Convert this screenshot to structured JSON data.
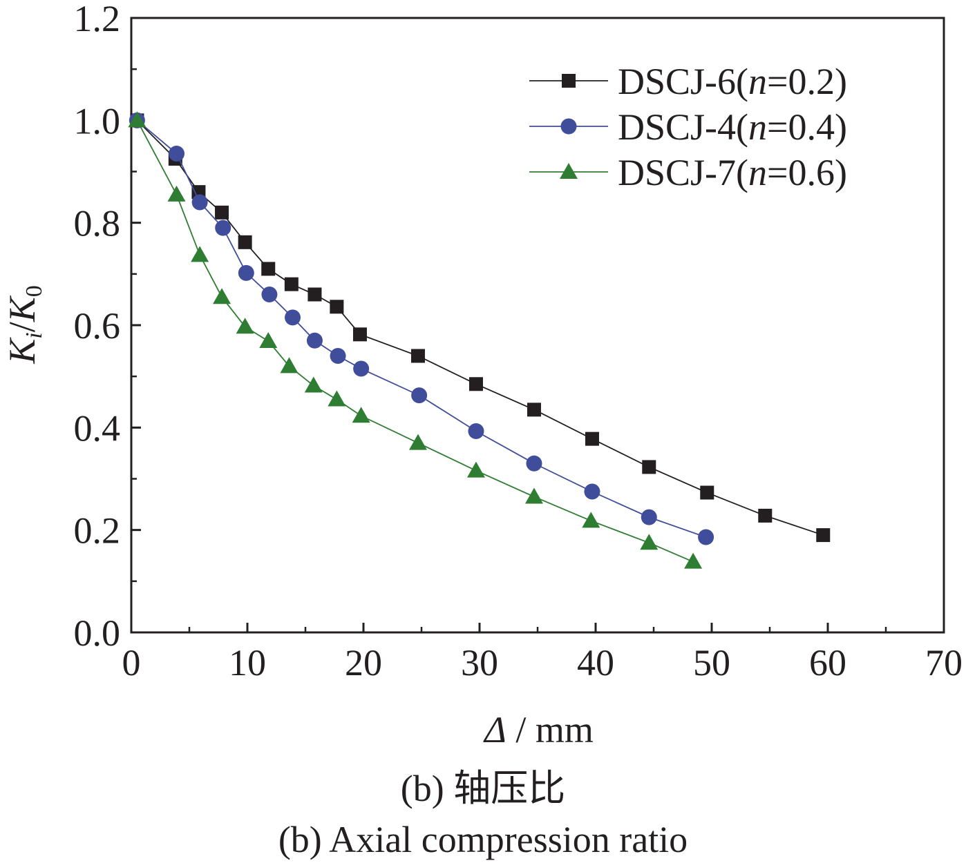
{
  "chart_data": {
    "type": "line",
    "title": "",
    "xlabel": "Δ / mm",
    "xlabel_parts": {
      "symbol": "Δ",
      "unit": " / mm"
    },
    "ylabel_parts": {
      "k1": "K",
      "sub1": "i",
      "slash": "/",
      "k2": "K",
      "sub2": "0"
    },
    "xlim": [
      0,
      70
    ],
    "ylim": [
      0,
      1.2
    ],
    "xticks": [
      "0",
      "10",
      "20",
      "30",
      "40",
      "50",
      "60",
      "70"
    ],
    "yticks": [
      "0.0",
      "0.2",
      "0.4",
      "0.6",
      "0.8",
      "1.0",
      "1.2"
    ],
    "grid": false,
    "legend_position": "top-right",
    "series": [
      {
        "name": "DSCJ-6(n=0.2)",
        "legend": {
          "prefix": "DSCJ-6(",
          "italic": "n",
          "suffix": "=0.2)"
        },
        "marker": "square",
        "color": "#231f20",
        "x": [
          0.5,
          3.8,
          5.8,
          7.8,
          9.8,
          11.8,
          13.8,
          15.8,
          17.7,
          19.7,
          24.7,
          29.7,
          34.7,
          39.7,
          44.6,
          49.6,
          54.6,
          59.6
        ],
        "y": [
          1.0,
          0.925,
          0.86,
          0.82,
          0.762,
          0.71,
          0.68,
          0.66,
          0.636,
          0.582,
          0.54,
          0.485,
          0.435,
          0.378,
          0.323,
          0.273,
          0.228,
          0.19
        ]
      },
      {
        "name": "DSCJ-4(n=0.4)",
        "legend": {
          "prefix": "DSCJ-4(",
          "italic": "n",
          "suffix": "=0.4)"
        },
        "marker": "circle",
        "color": "#3f4d9b",
        "x": [
          0.5,
          3.9,
          5.9,
          7.9,
          9.9,
          11.9,
          13.9,
          15.8,
          17.8,
          19.8,
          24.8,
          29.7,
          34.7,
          39.7,
          44.6,
          49.5
        ],
        "y": [
          1.0,
          0.935,
          0.84,
          0.79,
          0.702,
          0.66,
          0.615,
          0.57,
          0.54,
          0.515,
          0.463,
          0.393,
          0.33,
          0.275,
          0.225,
          0.186
        ]
      },
      {
        "name": "DSCJ-7(n=0.6)",
        "legend": {
          "prefix": "DSCJ-7(",
          "italic": "n",
          "suffix": "=0.6)"
        },
        "marker": "triangle",
        "color": "#2e7d32",
        "x": [
          0.5,
          3.9,
          5.9,
          7.8,
          9.8,
          11.8,
          13.6,
          15.7,
          17.7,
          19.8,
          24.7,
          29.7,
          34.7,
          39.6,
          44.6,
          48.4
        ],
        "y": [
          1.0,
          0.855,
          0.737,
          0.655,
          0.597,
          0.569,
          0.52,
          0.482,
          0.455,
          0.423,
          0.37,
          0.316,
          0.265,
          0.218,
          0.175,
          0.138
        ]
      }
    ]
  },
  "caption": {
    "line1": "(b) 轴压比",
    "line2": "(b) Axial compression ratio"
  }
}
